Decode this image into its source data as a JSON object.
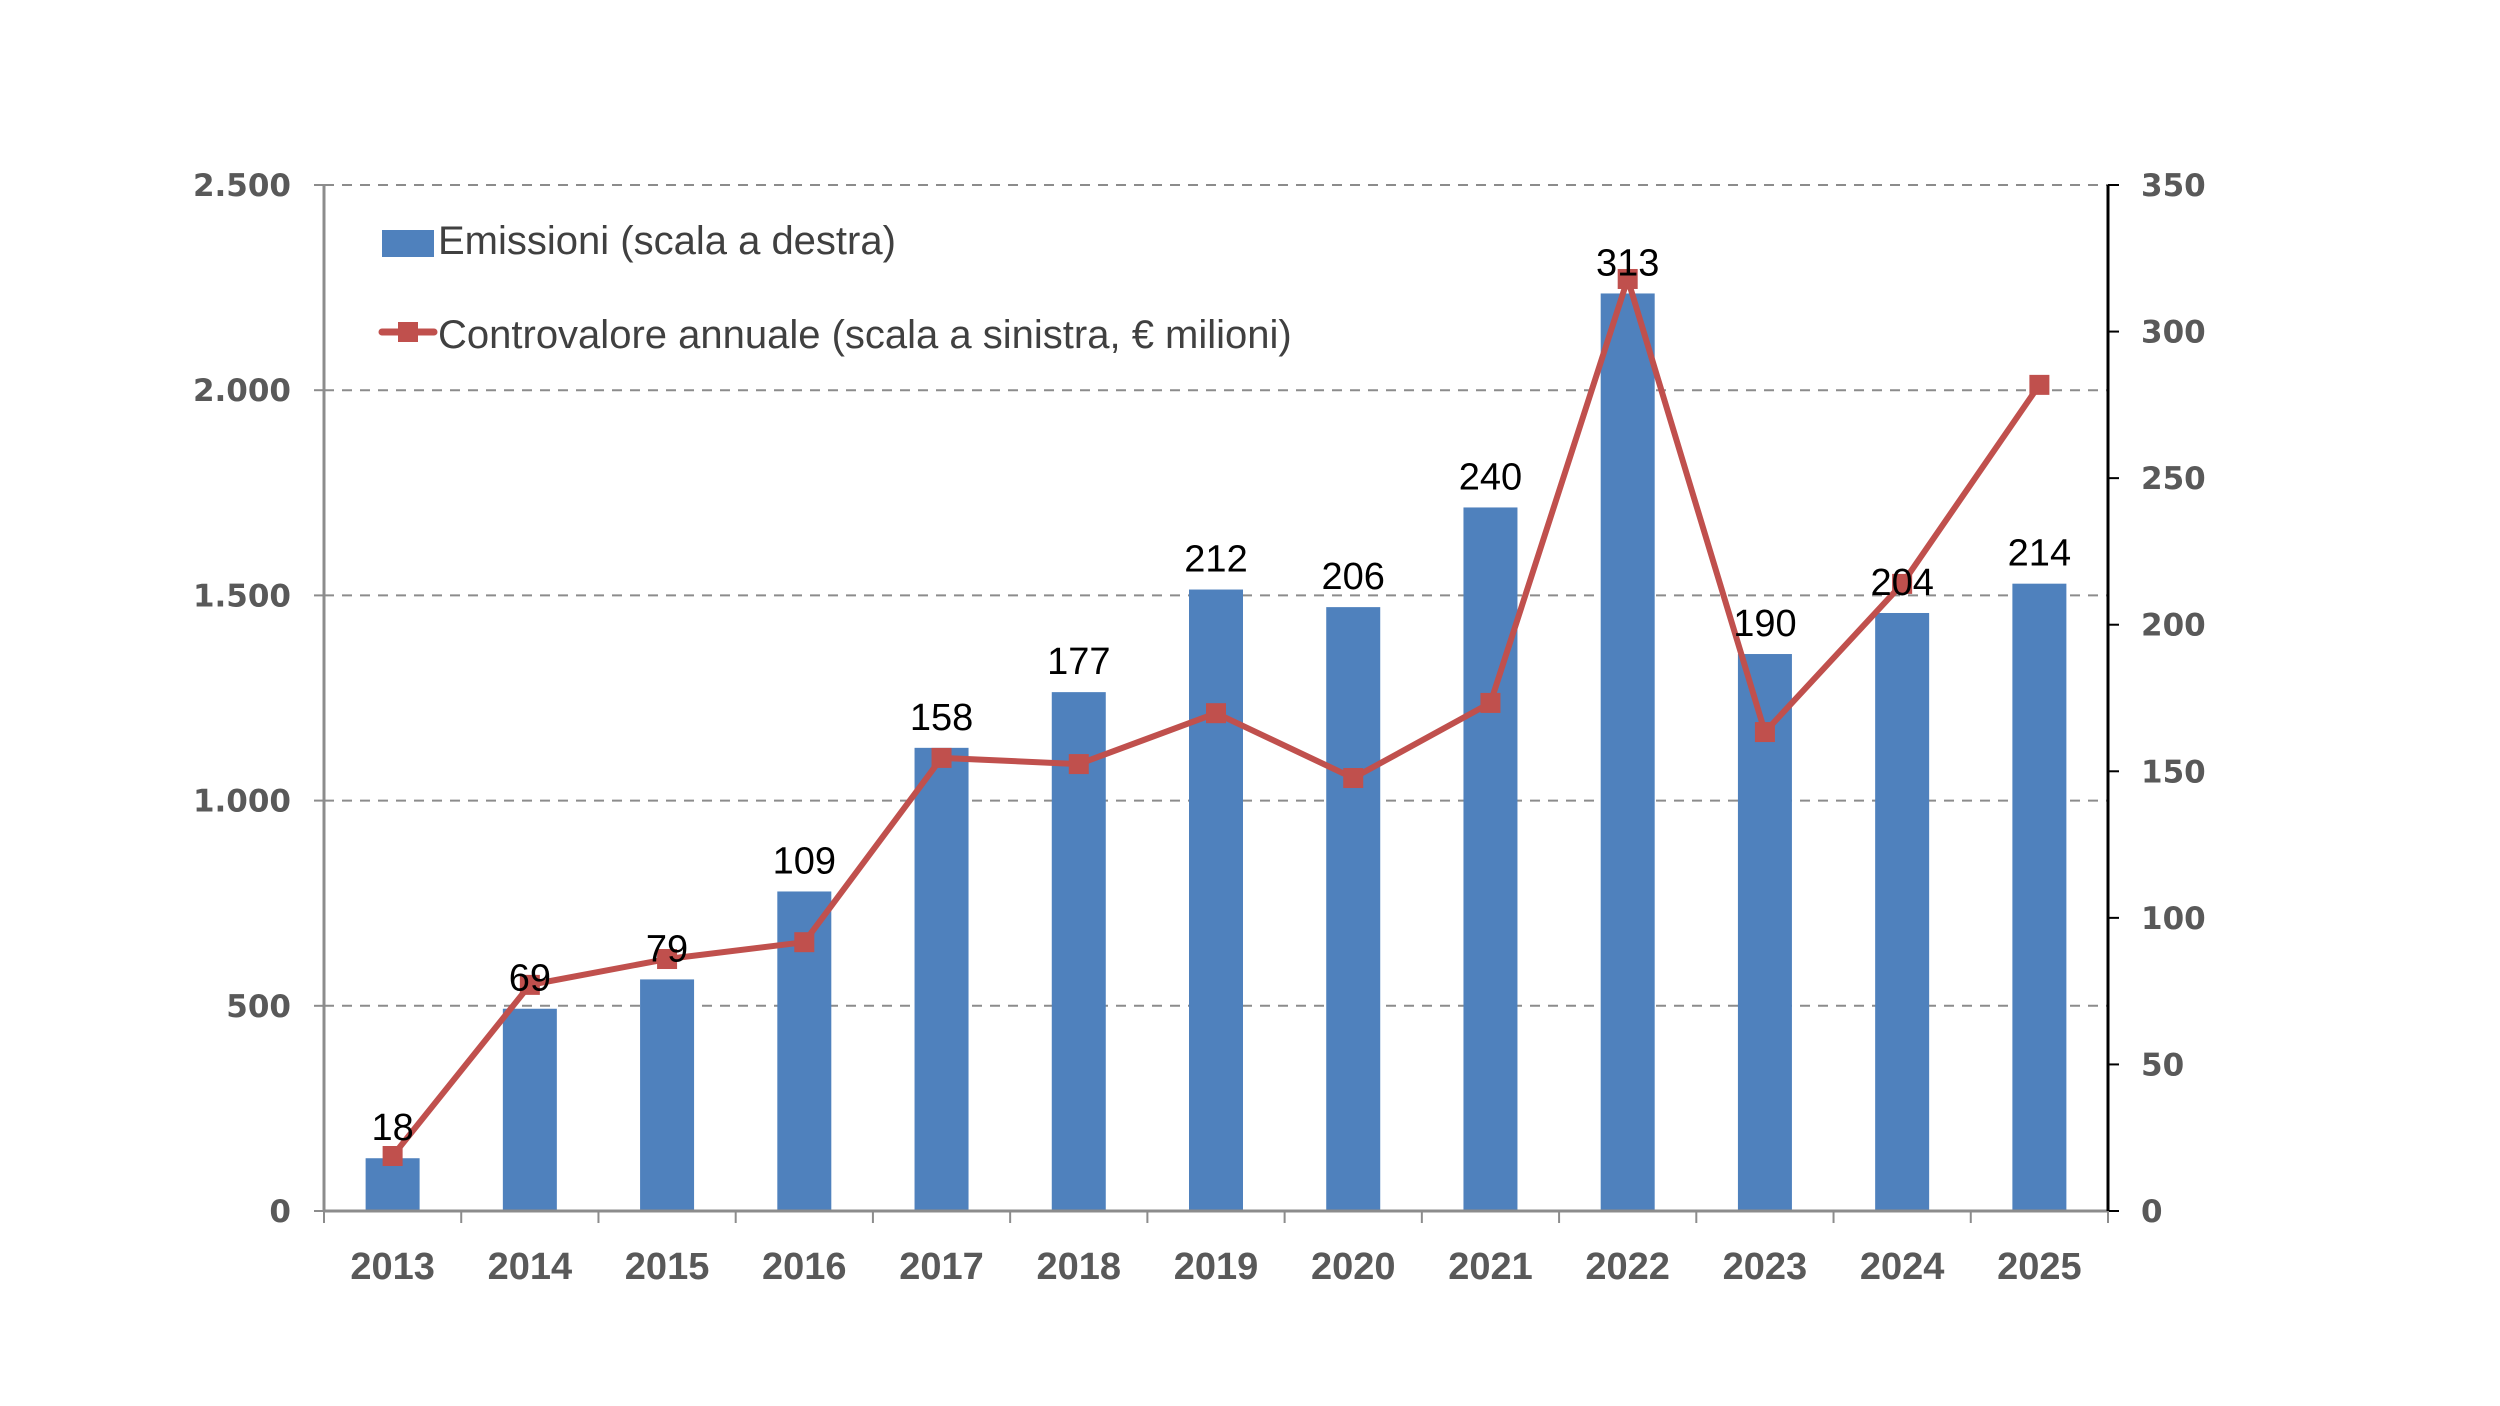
{
  "chart_data": {
    "type": "bar+line",
    "title": "",
    "categories": [
      "2013",
      "2014",
      "2015",
      "2016",
      "2017",
      "2018",
      "2019",
      "2020",
      "2021",
      "2022",
      "2023",
      "2024",
      "2025"
    ],
    "series": [
      {
        "name": "Emissioni (scala a destra)",
        "type": "bar",
        "axis": "right",
        "color": "#4F81BD",
        "values": [
          18,
          69,
          79,
          109,
          158,
          177,
          212,
          206,
          240,
          313,
          190,
          204,
          214
        ],
        "labels": [
          "18",
          "69",
          "79",
          "109",
          "158",
          "177",
          "212",
          "206",
          "240",
          "313",
          "190",
          "204",
          "214"
        ]
      },
      {
        "name": "Controvalore annuale (scala a sinistra, € milioni)",
        "type": "line",
        "axis": "left",
        "color": "#C0504D",
        "marker": "square",
        "values": [
          134,
          551,
          614,
          655,
          1104,
          1089,
          1213,
          1055,
          1238,
          2271,
          1167,
          1528,
          2013
        ]
      }
    ],
    "left_axis": {
      "label": "",
      "range": [
        0,
        2500
      ],
      "ticks": [
        0,
        500,
        1000,
        1500,
        2000,
        2500
      ],
      "tick_labels": [
        "0",
        "500",
        "1.000",
        "1.500",
        "2.000",
        "2.500"
      ]
    },
    "right_axis": {
      "label": "",
      "range": [
        0,
        350
      ],
      "ticks": [
        0,
        50,
        100,
        150,
        200,
        250,
        300,
        350
      ],
      "tick_labels": [
        "0",
        "50",
        "100",
        "150",
        "200",
        "250",
        "300",
        "350"
      ]
    },
    "xlabel": "",
    "grid": "horizontal dashed (left axis)",
    "legend": {
      "placement": "top-left inside",
      "entries": [
        "Emissioni (scala a destra)",
        "Controvalore annuale (scala a sinistra, € milioni)"
      ]
    }
  }
}
